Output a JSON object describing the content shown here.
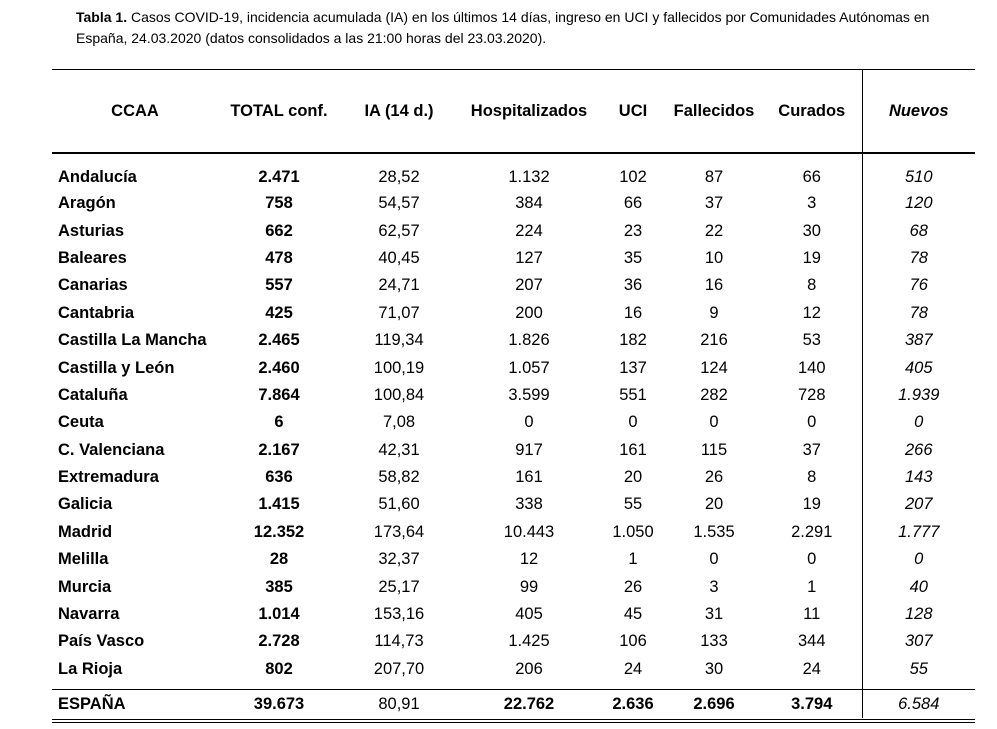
{
  "caption": {
    "label": "Tabla 1.",
    "text": "Casos COVID-19, incidencia acumulada (IA) en los últimos 14 días, ingreso en UCI y fallecidos por Comunidades Autónomas en España, 24.03.2020 (datos consolidados a las 21:00 horas del 23.03.2020)."
  },
  "headers": [
    "CCAA",
    "TOTAL conf.",
    "IA (14 d.)",
    "Hospitalizados",
    "UCI",
    "Fallecidos",
    "Curados",
    "Nuevos"
  ],
  "rows": [
    [
      "Andalucía",
      "2.471",
      "28,52",
      "1.132",
      "102",
      "87",
      "66",
      "510"
    ],
    [
      "Aragón",
      "758",
      "54,57",
      "384",
      "66",
      "37",
      "3",
      "120"
    ],
    [
      "Asturias",
      "662",
      "62,57",
      "224",
      "23",
      "22",
      "30",
      "68"
    ],
    [
      "Baleares",
      "478",
      "40,45",
      "127",
      "35",
      "10",
      "19",
      "78"
    ],
    [
      "Canarias",
      "557",
      "24,71",
      "207",
      "36",
      "16",
      "8",
      "76"
    ],
    [
      "Cantabria",
      "425",
      "71,07",
      "200",
      "16",
      "9",
      "12",
      "78"
    ],
    [
      "Castilla La Mancha",
      "2.465",
      "119,34",
      "1.826",
      "182",
      "216",
      "53",
      "387"
    ],
    [
      "Castilla y León",
      "2.460",
      "100,19",
      "1.057",
      "137",
      "124",
      "140",
      "405"
    ],
    [
      "Cataluña",
      "7.864",
      "100,84",
      "3.599",
      "551",
      "282",
      "728",
      "1.939"
    ],
    [
      "Ceuta",
      "6",
      "7,08",
      "0",
      "0",
      "0",
      "0",
      "0"
    ],
    [
      "C. Valenciana",
      "2.167",
      "42,31",
      "917",
      "161",
      "115",
      "37",
      "266"
    ],
    [
      "Extremadura",
      "636",
      "58,82",
      "161",
      "20",
      "26",
      "8",
      "143"
    ],
    [
      "Galicia",
      "1.415",
      "51,60",
      "338",
      "55",
      "20",
      "19",
      "207"
    ],
    [
      "Madrid",
      "12.352",
      "173,64",
      "10.443",
      "1.050",
      "1.535",
      "2.291",
      "1.777"
    ],
    [
      "Melilla",
      "28",
      "32,37",
      "12",
      "1",
      "0",
      "0",
      "0"
    ],
    [
      "Murcia",
      "385",
      "25,17",
      "99",
      "26",
      "3",
      "1",
      "40"
    ],
    [
      "Navarra",
      "1.014",
      "153,16",
      "405",
      "45",
      "31",
      "11",
      "128"
    ],
    [
      "País Vasco",
      "2.728",
      "114,73",
      "1.425",
      "106",
      "133",
      "344",
      "307"
    ],
    [
      "La Rioja",
      "802",
      "207,70",
      "206",
      "24",
      "30",
      "24",
      "55"
    ]
  ],
  "total": [
    "ESPAÑA",
    "39.673",
    "80,91",
    "22.762",
    "2.636",
    "2.696",
    "3.794",
    "6.584"
  ]
}
